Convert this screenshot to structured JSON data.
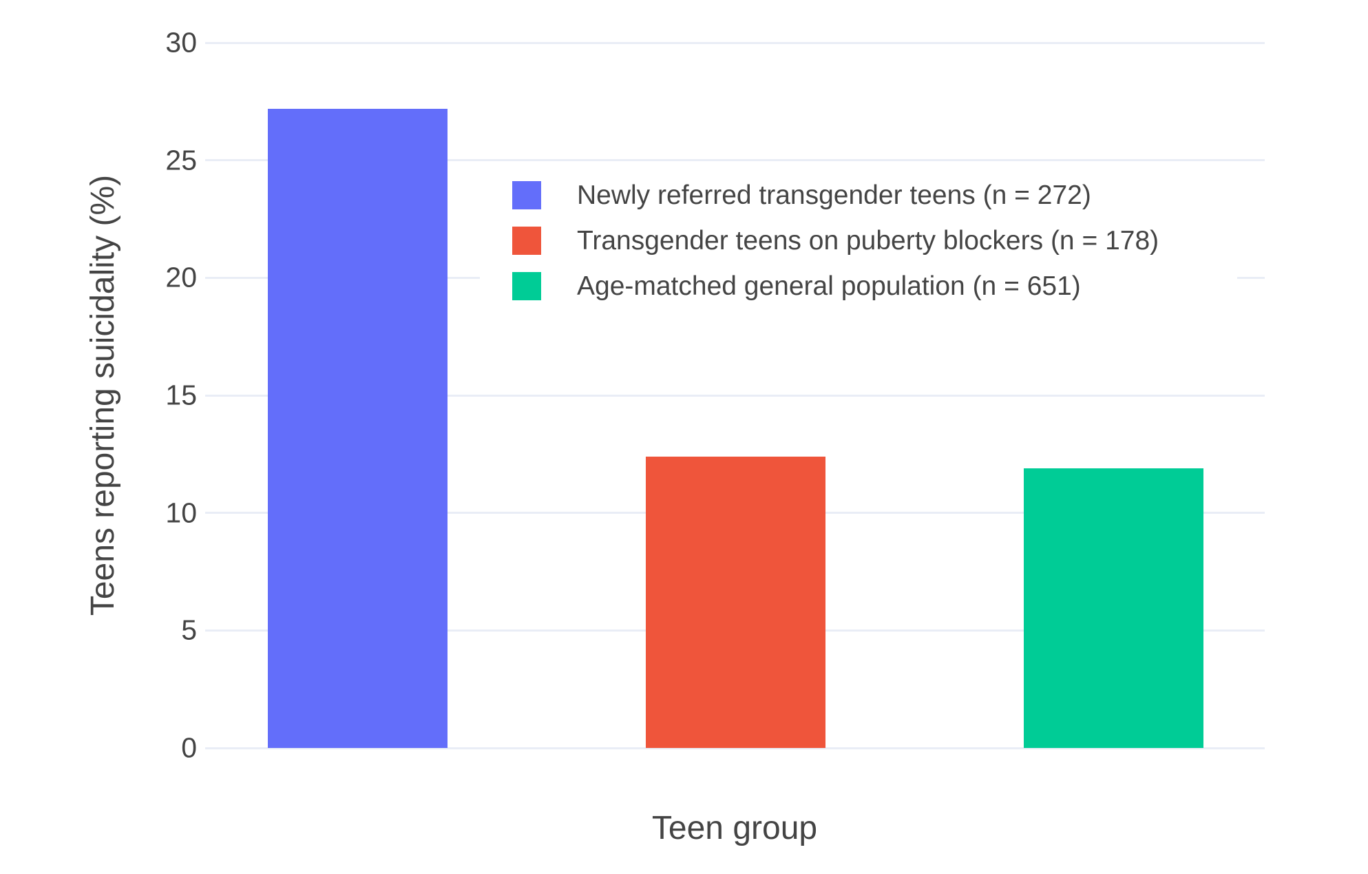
{
  "figure": {
    "background": "#ffffff",
    "text_color": "#444444",
    "grid_color": "#E9EDF6"
  },
  "chart_data": {
    "type": "bar",
    "title": "",
    "xlabel": "Teen group",
    "ylabel": "Teens reporting suicidality (%)",
    "categories": [
      "Newly referred transgender teens (n = 272)",
      "Transgender teens on puberty blockers (n = 178)",
      "Age-matched general population (n = 651)"
    ],
    "values": [
      27.2,
      12.4,
      11.9
    ],
    "colors": [
      "#636EFA",
      "#EF553B",
      "#00CC96"
    ],
    "ylim": [
      0,
      30
    ],
    "yticks": [
      0,
      5,
      10,
      15,
      20,
      25,
      30
    ],
    "grid": true,
    "x_tick_labels_visible": false,
    "legend_position": "inside-upper-center-right",
    "legend": [
      {
        "label": "Newly referred transgender teens (n = 272)",
        "color": "#636EFA"
      },
      {
        "label": "Transgender teens on puberty blockers (n = 178)",
        "color": "#EF553B"
      },
      {
        "label": "Age-matched general population (n = 651)",
        "color": "#00CC96"
      }
    ]
  }
}
